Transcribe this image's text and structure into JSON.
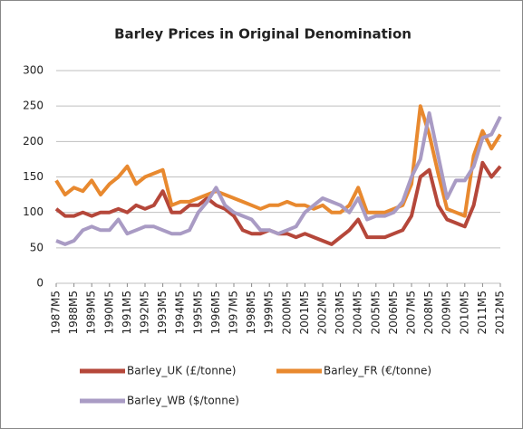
{
  "chart_data": {
    "type": "line",
    "title": "Barley Prices in Original Denomination",
    "categories": [
      "1987M5",
      null,
      "1988M5",
      null,
      "1989M5",
      null,
      "1990M5",
      null,
      "1991M5",
      null,
      "1992M5",
      null,
      "1993M5",
      null,
      "1994M5",
      null,
      "1995M5",
      null,
      "1996M5",
      null,
      "1997M5",
      null,
      "1998M5",
      null,
      "1999M5",
      null,
      "2000M5",
      null,
      "2001M5",
      null,
      "2002M5",
      null,
      "2003M5",
      null,
      "2004M5",
      null,
      "2005M5",
      null,
      "2006M5",
      null,
      "2007M5",
      null,
      "2008M5",
      null,
      "2009M5",
      null,
      "2010M5",
      null,
      "2011M5",
      null,
      "2012M5"
    ],
    "series": [
      {
        "name": "Barley_UK (£/tonne)",
        "color": "#b5473a",
        "values": [
          105,
          95,
          95,
          100,
          95,
          100,
          100,
          105,
          100,
          110,
          105,
          110,
          130,
          100,
          100,
          110,
          110,
          120,
          110,
          105,
          95,
          75,
          70,
          70,
          75,
          70,
          70,
          65,
          70,
          65,
          60,
          55,
          65,
          75,
          90,
          65,
          65,
          65,
          70,
          75,
          95,
          150,
          160,
          110,
          90,
          85,
          80,
          110,
          170,
          150,
          165
        ]
      },
      {
        "name": "Barley_FR (€/tonne)",
        "color": "#e8892f",
        "values": [
          145,
          125,
          135,
          130,
          145,
          125,
          140,
          150,
          165,
          140,
          150,
          155,
          160,
          110,
          115,
          115,
          120,
          125,
          130,
          125,
          120,
          115,
          110,
          105,
          110,
          110,
          115,
          110,
          110,
          105,
          110,
          100,
          100,
          110,
          135,
          100,
          100,
          100,
          105,
          110,
          140,
          250,
          210,
          155,
          105,
          100,
          95,
          180,
          215,
          190,
          210
        ]
      },
      {
        "name": "Barley_WB ($/tonne)",
        "color": "#a99bc4",
        "values": [
          60,
          55,
          60,
          75,
          80,
          75,
          75,
          90,
          70,
          75,
          80,
          80,
          75,
          70,
          70,
          75,
          100,
          115,
          135,
          110,
          100,
          95,
          90,
          75,
          75,
          70,
          75,
          80,
          100,
          110,
          120,
          115,
          110,
          100,
          120,
          90,
          95,
          95,
          100,
          115,
          150,
          175,
          240,
          180,
          120,
          145,
          145,
          165,
          205,
          210,
          235
        ]
      }
    ],
    "ylim": [
      0,
      300
    ],
    "yticks": [
      0,
      50,
      100,
      150,
      200,
      250,
      300
    ],
    "grid": true
  }
}
